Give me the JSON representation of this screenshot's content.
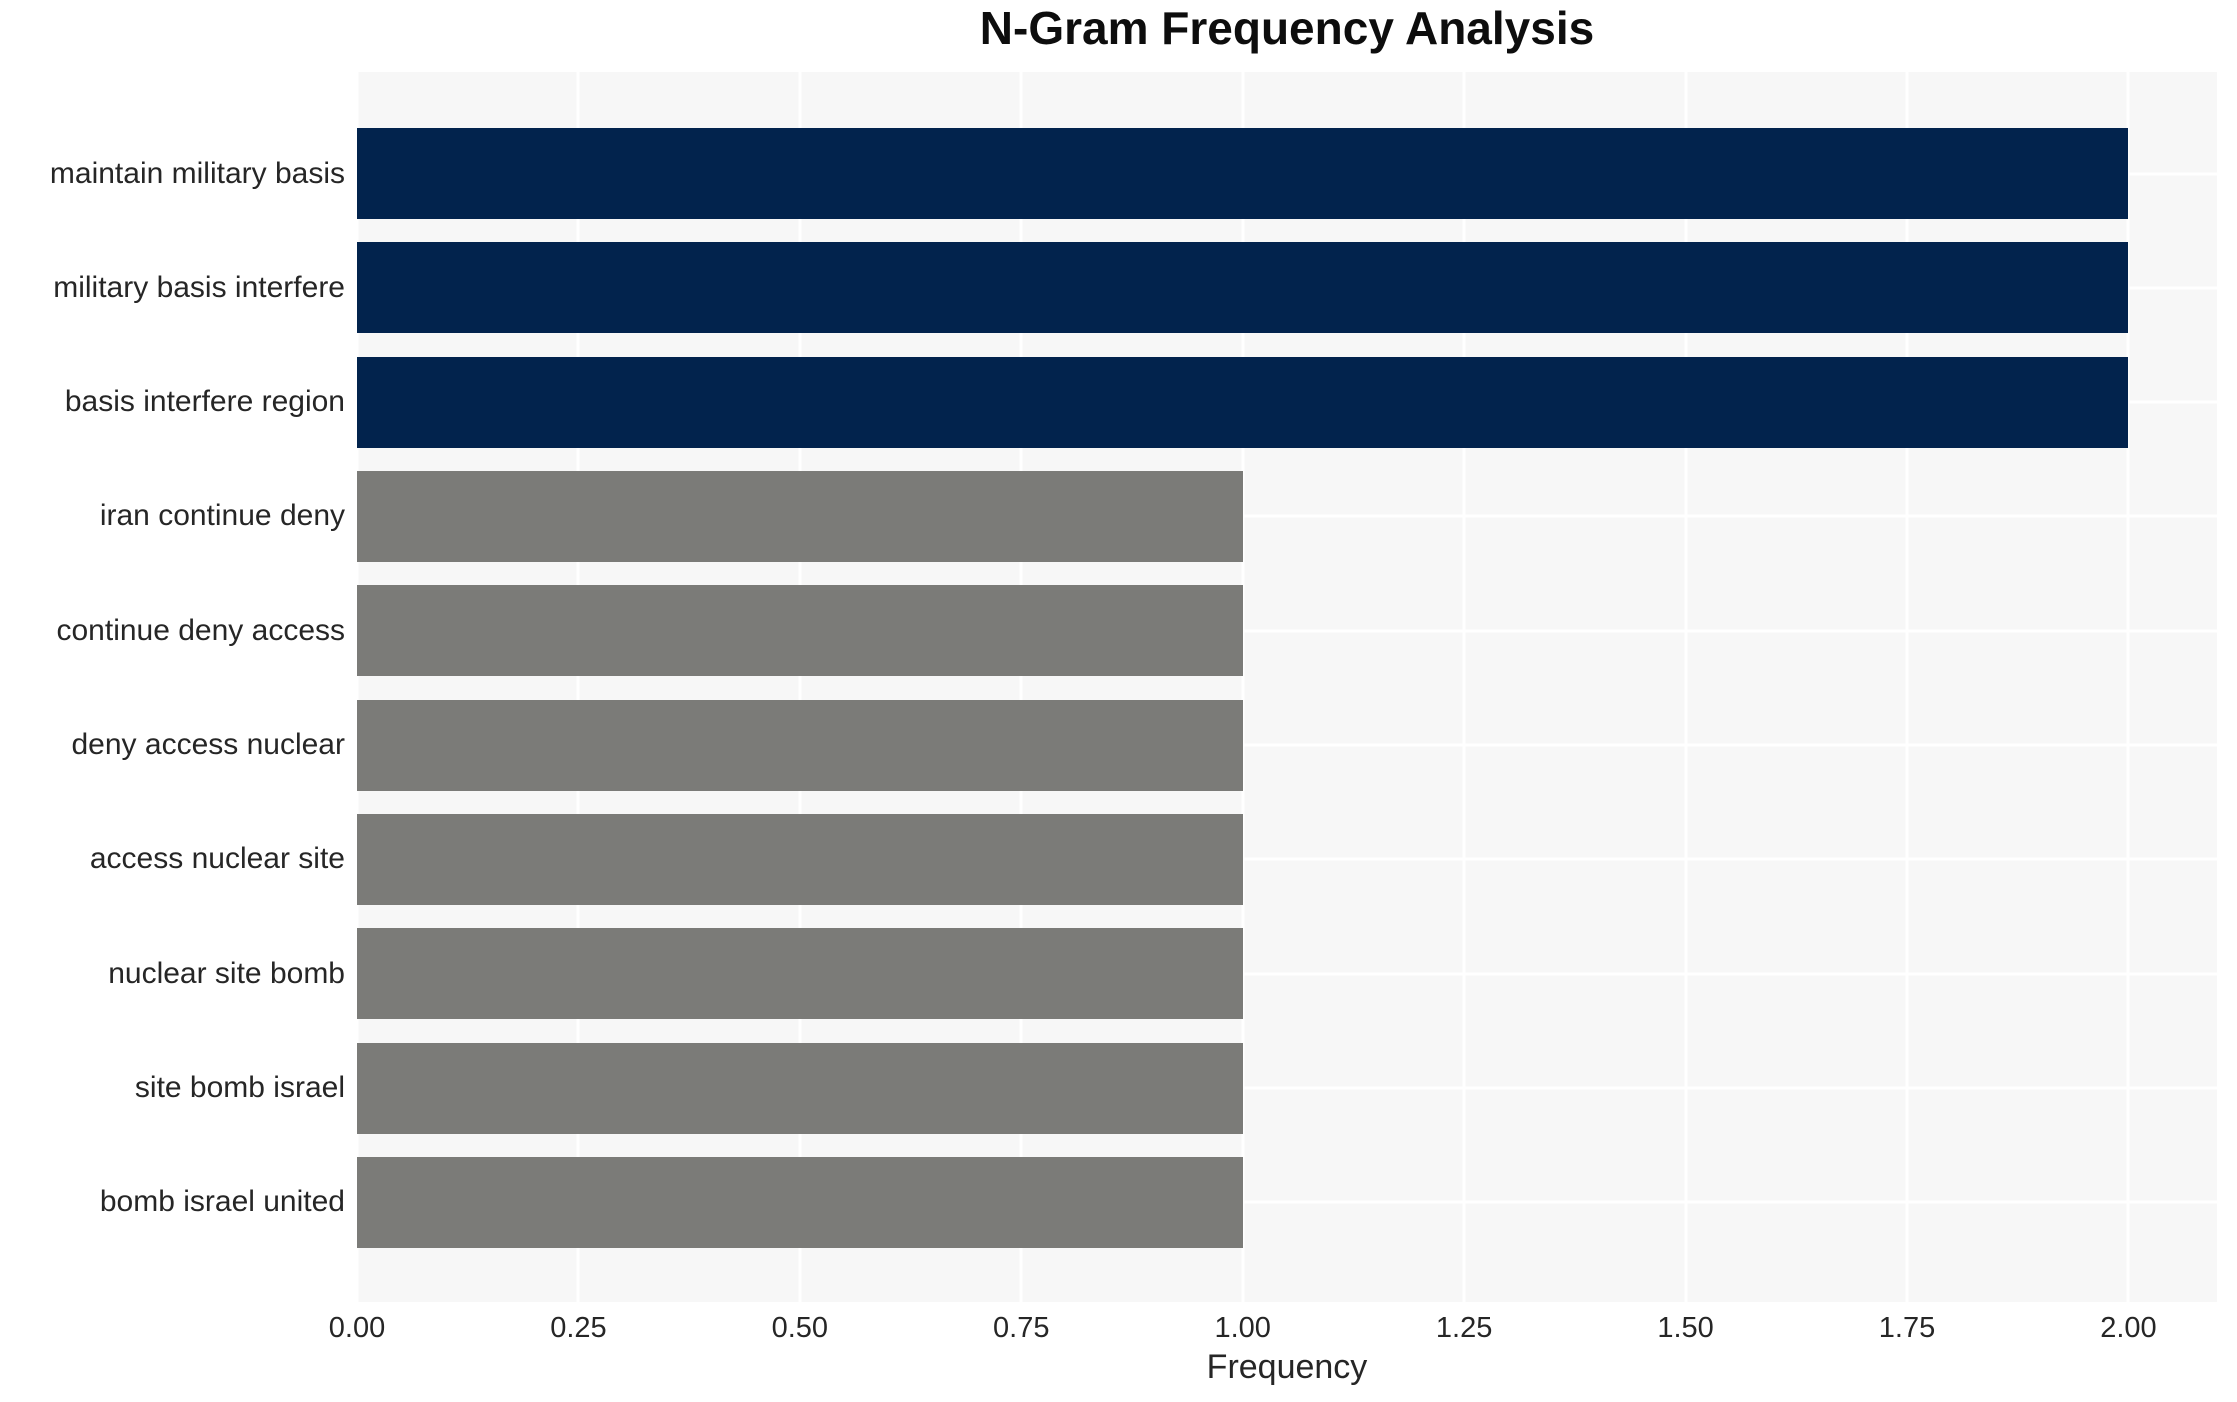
{
  "chart_data": {
    "type": "bar",
    "orientation": "horizontal",
    "title": "N-Gram Frequency Analysis",
    "xlabel": "Frequency",
    "ylabel": "",
    "categories": [
      "maintain military basis",
      "military basis interfere",
      "basis interfere region",
      "iran continue deny",
      "continue deny access",
      "deny access nuclear",
      "access nuclear site",
      "nuclear site bomb",
      "site bomb israel",
      "bomb israel united"
    ],
    "values": [
      2,
      2,
      2,
      1,
      1,
      1,
      1,
      1,
      1,
      1
    ],
    "bar_colors": [
      "#02234d",
      "#02234d",
      "#02234d",
      "#7b7b78",
      "#7b7b78",
      "#7b7b78",
      "#7b7b78",
      "#7b7b78",
      "#7b7b78",
      "#7b7b78"
    ],
    "xlim": [
      0,
      2.1
    ],
    "x_ticks": [
      0,
      0.25,
      0.5,
      0.75,
      1,
      1.25,
      1.5,
      1.75,
      2
    ],
    "x_tick_labels": [
      "0.00",
      "0.25",
      "0.50",
      "0.75",
      "1.00",
      "1.25",
      "1.50",
      "1.75",
      "2.00"
    ],
    "grid": "on",
    "legend": "none",
    "style": {
      "plot_background": "#f7f7f7",
      "page_background": "#ffffff",
      "gridline_color": "#ffffff",
      "bar_color_high": "#02234d",
      "bar_color_low": "#7b7b78",
      "text_color": "#262626",
      "title_color": "#0d0d0d"
    }
  }
}
